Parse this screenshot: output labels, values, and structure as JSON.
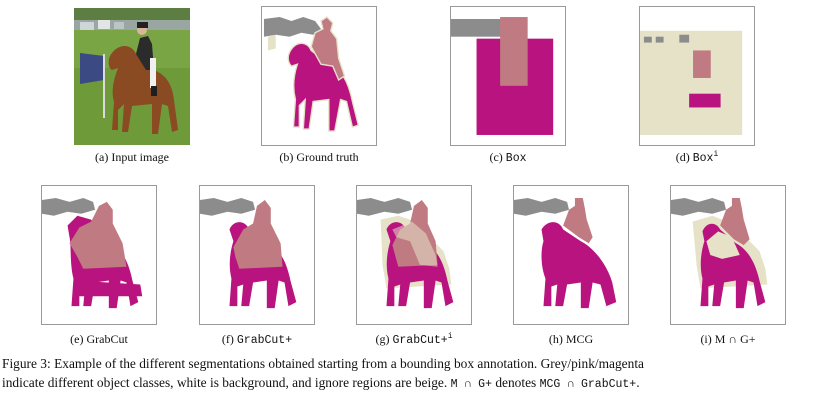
{
  "colors": {
    "magenta": "#b8137e",
    "pink": "#bf7a82",
    "grey": "#8c8c8c",
    "beige": "#e6e2c8",
    "background": "#ffffff"
  },
  "panels": {
    "a": {
      "label": "(a) Input image"
    },
    "b": {
      "label": "(b)  Ground truth"
    },
    "c": {
      "label_prefix": "(c) ",
      "label_name": "Box"
    },
    "d": {
      "label_prefix": "(d) ",
      "label_name": "Box",
      "label_sup": "i"
    },
    "e": {
      "label": "(e) GrabCut"
    },
    "f": {
      "label_prefix": "(f) ",
      "label_name": "GrabCut+"
    },
    "g": {
      "label_prefix": "(g) ",
      "label_name": "GrabCut+",
      "label_sup": "i"
    },
    "h": {
      "label": "(h) MCG"
    },
    "i": {
      "label": "(i) M ∩ G+"
    }
  },
  "caption": {
    "line1": "Figure 3: Example of the different segmentations obtained starting from a bounding box annotation. Grey/pink/magenta",
    "line2_a": "indicate different object classes, white is background, and ignore regions are beige. ",
    "line2_b": "M ∩ G+",
    "line2_c": " denotes ",
    "line2_d": "MCG ∩ GrabCut+",
    "line2_e": "."
  }
}
